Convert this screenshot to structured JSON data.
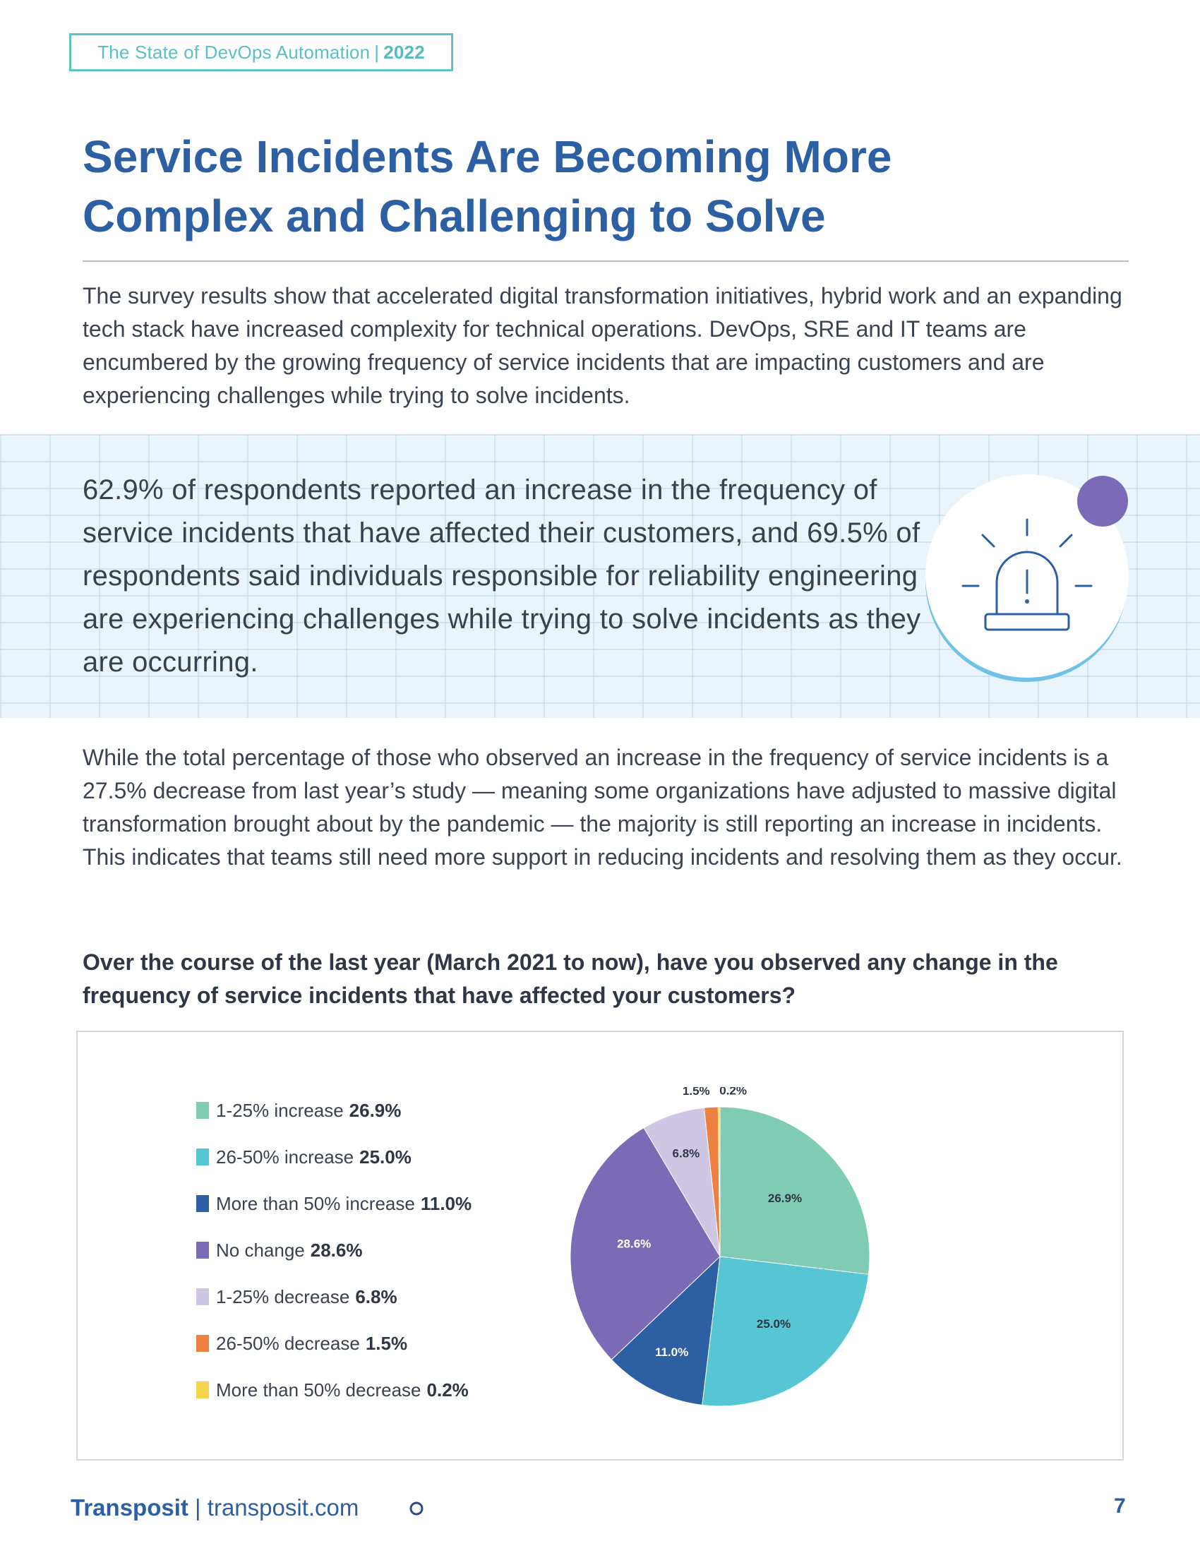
{
  "header": {
    "report": "The State of DevOps Automation",
    "separator": "|",
    "year": "2022"
  },
  "title_line1": "Service Incidents Are Becoming More",
  "title_line2": "Complex and Challenging to Solve",
  "intro": "The survey results show that accelerated digital transformation initiatives, hybrid work and an expanding tech stack have increased complexity for technical operations. DevOps, SRE and IT teams are encumbered by the growing frequency of service incidents that are impacting customers and are experiencing challenges while trying to solve incidents.",
  "callout": "62.9% of respondents reported an increase in the frequency of service incidents that have affected their customers, and 69.5% of respondents said individuals responsible for reliability engineering are experiencing challenges while trying to solve incidents as they are occurring.",
  "callout_icon": "alarm-light-icon",
  "body2": "While the total percentage of those who observed an increase in the frequency of service incidents is a 27.5% decrease from last year’s study — meaning some organizations have adjusted to massive digital transformation brought about by the pandemic — the majority is still reporting an increase in incidents. This indicates that teams still need more support in reducing incidents and resolving them as they occur.",
  "question": "Over the course of the last year (March 2021 to now), have you observed any change in the frequency of service incidents that have affected your customers?",
  "chart_data": {
    "type": "pie",
    "legend_position": "left",
    "categories": [
      "1-25% increase",
      "26-50% increase",
      "More than 50% increase",
      "No change",
      "1-25% decrease",
      "26-50% decrease",
      "More than 50% decrease"
    ],
    "values": [
      26.9,
      25.0,
      11.0,
      28.6,
      6.8,
      1.5,
      0.2
    ],
    "value_labels": [
      "26.9%",
      "25.0%",
      "11.0%",
      "28.6%",
      "6.8%",
      "1.5%",
      "0.2%"
    ],
    "colors": [
      "#7fcbb4",
      "#56c6d4",
      "#2d5fa3",
      "#7b6bb7",
      "#cfc6e4",
      "#ee8142",
      "#f4d44a"
    ]
  },
  "footer": {
    "brand": "Transposit",
    "separator": "|",
    "url": "transposit.com",
    "page": "7"
  }
}
